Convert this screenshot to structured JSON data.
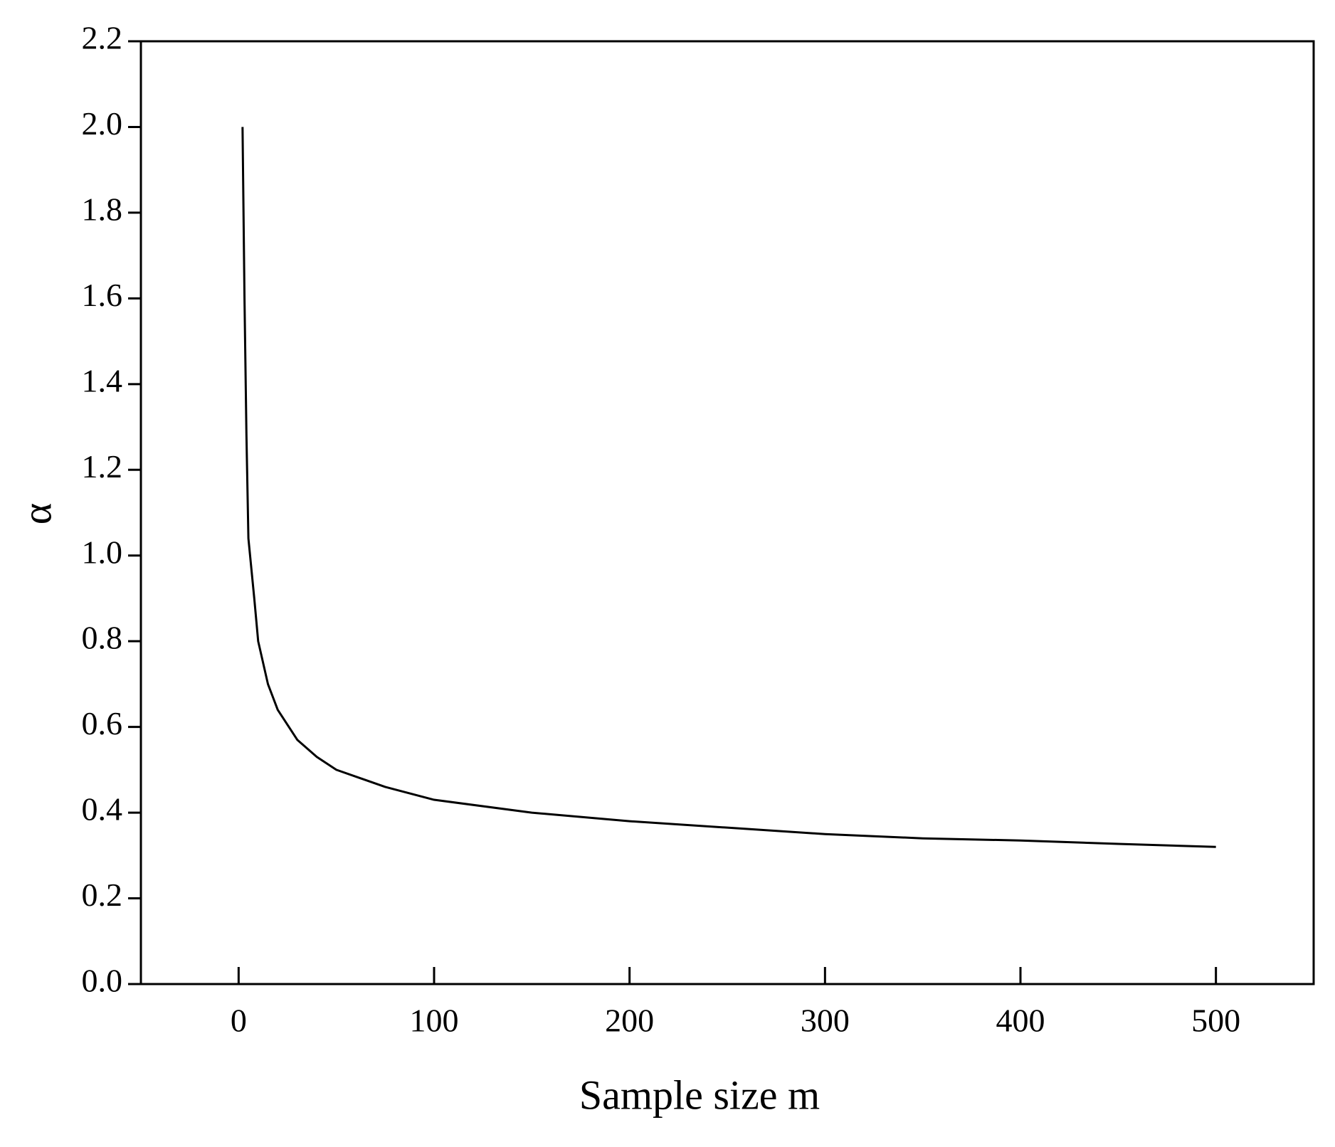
{
  "chart_data": {
    "type": "line",
    "x_label": "Sample size m",
    "y_label": "α",
    "x": [
      2,
      3,
      4,
      5,
      8,
      10,
      15,
      20,
      30,
      40,
      50,
      75,
      100,
      150,
      200,
      250,
      300,
      350,
      400,
      450,
      500
    ],
    "series": [
      {
        "color": "#000000",
        "values": [
          2.0,
          1.6,
          1.28,
          1.04,
          0.9,
          0.8,
          0.7,
          0.64,
          0.57,
          0.53,
          0.5,
          0.46,
          0.43,
          0.4,
          0.38,
          0.365,
          0.35,
          0.34,
          0.335,
          0.327,
          0.32
        ]
      }
    ],
    "xlim": [
      -50,
      550
    ],
    "ylim": [
      0,
      2.2
    ],
    "xticks": [
      0,
      100,
      200,
      300,
      400,
      500
    ],
    "yticks": [
      {
        "value": 0,
        "label": "0.0"
      },
      {
        "value": 0.2,
        "label": "0.2"
      },
      {
        "value": 0.4,
        "label": "0.4"
      },
      {
        "value": 0.6,
        "label": "0.6"
      },
      {
        "value": 0.8,
        "label": "0.8"
      },
      {
        "value": 1.0,
        "label": "1.0"
      },
      {
        "value": 1.2,
        "label": "1.2"
      },
      {
        "value": 1.4,
        "label": "1.4"
      },
      {
        "value": 1.6,
        "label": "1.6"
      },
      {
        "value": 1.8,
        "label": "1.8"
      },
      {
        "value": 2.0,
        "label": "2.0"
      },
      {
        "value": 2.2,
        "label": "2.2"
      }
    ],
    "grid": false
  }
}
